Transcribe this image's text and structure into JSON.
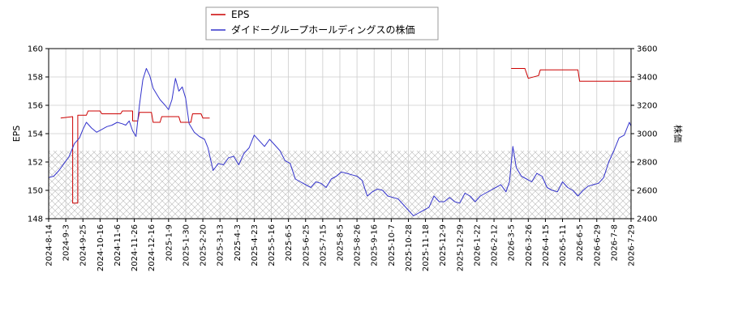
{
  "chart_data": {
    "type": "line",
    "title": "",
    "x_tick_labels": [
      "2024-8-14",
      "2024-9-3",
      "2024-9-25",
      "2024-10-16",
      "2024-11-6",
      "2024-11-26",
      "2024-12-16",
      "2025-1-9",
      "2025-1-30",
      "2025-2-20",
      "2025-3-13",
      "2025-4-3",
      "2025-4-23",
      "2025-5-16",
      "2025-6-5",
      "2025-6-25",
      "2025-7-15",
      "2025-8-5",
      "2025-8-26",
      "2025-9-16",
      "2025-10-7",
      "2025-10-28",
      "2025-11-18",
      "2025-12-9",
      "2025-12-29",
      "2026-1-22",
      "2026-2-12",
      "2026-3-5",
      "2026-3-26",
      "2026-4-15",
      "2026-5-11",
      "2026-6-5",
      "2026-6-29",
      "2026-7-8",
      "2026-7-29"
    ],
    "y_left": {
      "label": "EPS",
      "ylim": [
        148,
        160
      ],
      "ticks": [
        "148",
        "150",
        "152",
        "154",
        "156",
        "158",
        "160"
      ]
    },
    "y_right": {
      "label": "株価",
      "ylim": [
        2400,
        3600
      ],
      "ticks": [
        "2400",
        "2600",
        "2800",
        "3000",
        "3200",
        "3400",
        "3600"
      ]
    },
    "grid": true,
    "legend_position": "top-center",
    "series": [
      {
        "name": "EPS",
        "axis": "left",
        "color": "#cc0000",
        "segments": [
          [
            [
              0.7,
              155.1
            ],
            [
              1.4,
              155.2
            ],
            [
              1.4,
              149.1
            ],
            [
              1.7,
              149.1
            ],
            [
              1.7,
              155.3
            ],
            [
              2.2,
              155.3
            ],
            [
              2.3,
              155.6
            ],
            [
              3.0,
              155.6
            ],
            [
              3.1,
              155.4
            ],
            [
              4.2,
              155.4
            ],
            [
              4.3,
              155.6
            ],
            [
              4.9,
              155.6
            ],
            [
              4.9,
              154.9
            ],
            [
              5.2,
              154.9
            ],
            [
              5.3,
              155.5
            ],
            [
              6.0,
              155.5
            ],
            [
              6.1,
              154.8
            ],
            [
              6.5,
              154.8
            ],
            [
              6.6,
              155.2
            ],
            [
              7.6,
              155.2
            ],
            [
              7.7,
              154.8
            ],
            [
              8.3,
              154.8
            ],
            [
              8.4,
              155.4
            ],
            [
              8.9,
              155.4
            ],
            [
              9.0,
              155.1
            ],
            [
              9.4,
              155.1
            ]
          ],
          [
            [
              27.0,
              158.6
            ],
            [
              27.8,
              158.6
            ],
            [
              28.0,
              157.9
            ],
            [
              28.6,
              158.1
            ],
            [
              28.7,
              158.5
            ],
            [
              30.9,
              158.5
            ],
            [
              31.0,
              157.7
            ],
            [
              35.0,
              157.7
            ]
          ]
        ]
      },
      {
        "name": "ダイドーグループホールディングスの株価",
        "axis": "right",
        "color": "#3333cc",
        "points": [
          [
            0.0,
            2690
          ],
          [
            0.3,
            2700
          ],
          [
            0.6,
            2740
          ],
          [
            0.9,
            2790
          ],
          [
            1.2,
            2840
          ],
          [
            1.5,
            2930
          ],
          [
            1.8,
            2970
          ],
          [
            2.0,
            3030
          ],
          [
            2.2,
            3080
          ],
          [
            2.5,
            3040
          ],
          [
            2.8,
            3010
          ],
          [
            3.1,
            3030
          ],
          [
            3.4,
            3050
          ],
          [
            3.7,
            3060
          ],
          [
            4.0,
            3080
          ],
          [
            4.3,
            3070
          ],
          [
            4.5,
            3060
          ],
          [
            4.7,
            3090
          ],
          [
            4.9,
            3020
          ],
          [
            5.1,
            2980
          ],
          [
            5.3,
            3200
          ],
          [
            5.5,
            3380
          ],
          [
            5.7,
            3460
          ],
          [
            5.9,
            3410
          ],
          [
            6.1,
            3320
          ],
          [
            6.3,
            3280
          ],
          [
            6.5,
            3240
          ],
          [
            6.8,
            3200
          ],
          [
            7.0,
            3170
          ],
          [
            7.2,
            3240
          ],
          [
            7.4,
            3390
          ],
          [
            7.6,
            3300
          ],
          [
            7.8,
            3330
          ],
          [
            8.0,
            3250
          ],
          [
            8.2,
            3070
          ],
          [
            8.5,
            3010
          ],
          [
            8.8,
            2980
          ],
          [
            9.1,
            2960
          ],
          [
            9.3,
            2900
          ],
          [
            9.6,
            2740
          ],
          [
            9.9,
            2790
          ],
          [
            10.2,
            2780
          ],
          [
            10.5,
            2830
          ],
          [
            10.8,
            2840
          ],
          [
            11.1,
            2780
          ],
          [
            11.4,
            2860
          ],
          [
            11.7,
            2900
          ],
          [
            12.0,
            2990
          ],
          [
            12.3,
            2950
          ],
          [
            12.6,
            2910
          ],
          [
            12.9,
            2960
          ],
          [
            13.2,
            2920
          ],
          [
            13.5,
            2880
          ],
          [
            13.8,
            2810
          ],
          [
            14.1,
            2790
          ],
          [
            14.4,
            2680
          ],
          [
            14.7,
            2660
          ],
          [
            15.0,
            2640
          ],
          [
            15.3,
            2620
          ],
          [
            15.6,
            2660
          ],
          [
            15.9,
            2650
          ],
          [
            16.2,
            2620
          ],
          [
            16.5,
            2680
          ],
          [
            16.8,
            2700
          ],
          [
            17.1,
            2730
          ],
          [
            17.4,
            2720
          ],
          [
            17.7,
            2710
          ],
          [
            18.0,
            2700
          ],
          [
            18.3,
            2670
          ],
          [
            18.6,
            2560
          ],
          [
            18.9,
            2590
          ],
          [
            19.2,
            2610
          ],
          [
            19.5,
            2600
          ],
          [
            19.8,
            2560
          ],
          [
            20.1,
            2550
          ],
          [
            20.4,
            2540
          ],
          [
            20.7,
            2500
          ],
          [
            21.0,
            2460
          ],
          [
            21.3,
            2420
          ],
          [
            21.6,
            2440
          ],
          [
            21.9,
            2460
          ],
          [
            22.2,
            2480
          ],
          [
            22.5,
            2560
          ],
          [
            22.8,
            2520
          ],
          [
            23.1,
            2520
          ],
          [
            23.4,
            2550
          ],
          [
            23.7,
            2520
          ],
          [
            24.0,
            2510
          ],
          [
            24.3,
            2580
          ],
          [
            24.6,
            2560
          ],
          [
            24.9,
            2520
          ],
          [
            25.2,
            2560
          ],
          [
            25.5,
            2580
          ],
          [
            25.8,
            2600
          ],
          [
            26.1,
            2620
          ],
          [
            26.4,
            2640
          ],
          [
            26.7,
            2590
          ],
          [
            26.9,
            2660
          ],
          [
            27.1,
            2910
          ],
          [
            27.3,
            2760
          ],
          [
            27.6,
            2700
          ],
          [
            27.9,
            2680
          ],
          [
            28.2,
            2660
          ],
          [
            28.5,
            2720
          ],
          [
            28.8,
            2700
          ],
          [
            29.1,
            2620
          ],
          [
            29.4,
            2600
          ],
          [
            29.7,
            2590
          ],
          [
            30.0,
            2660
          ],
          [
            30.3,
            2620
          ],
          [
            30.6,
            2600
          ],
          [
            30.9,
            2560
          ],
          [
            31.2,
            2600
          ],
          [
            31.5,
            2630
          ],
          [
            31.8,
            2640
          ],
          [
            32.1,
            2650
          ],
          [
            32.4,
            2690
          ],
          [
            32.7,
            2800
          ],
          [
            33.0,
            2880
          ],
          [
            33.3,
            2970
          ],
          [
            33.6,
            2990
          ],
          [
            33.9,
            3080
          ],
          [
            34.2,
            3000
          ],
          [
            34.5,
            2940
          ],
          [
            34.8,
            2950
          ],
          [
            35.0,
            2950
          ]
        ]
      }
    ]
  }
}
